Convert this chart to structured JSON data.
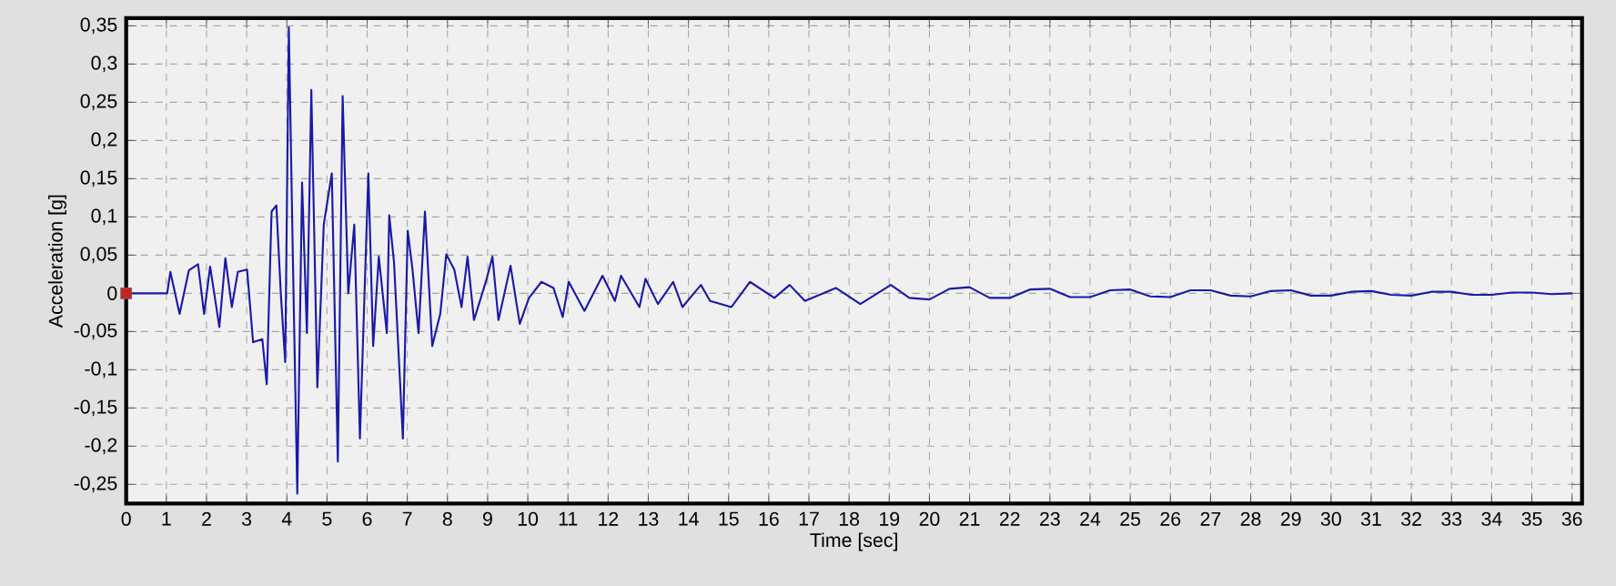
{
  "chart_data": {
    "type": "line",
    "xlabel": "Time [sec]",
    "ylabel": "Acceleration [g]",
    "xlim": [
      0,
      36.25
    ],
    "ylim": [
      -0.275,
      0.36
    ],
    "xticks": [
      0,
      1,
      2,
      3,
      4,
      5,
      6,
      7,
      8,
      9,
      10,
      11,
      12,
      13,
      14,
      15,
      16,
      17,
      18,
      19,
      20,
      21,
      22,
      23,
      24,
      25,
      26,
      27,
      28,
      29,
      30,
      31,
      32,
      33,
      34,
      35,
      36
    ],
    "yticks": [
      {
        "value": -0.25,
        "label": "-0,25"
      },
      {
        "value": -0.2,
        "label": "-0,2"
      },
      {
        "value": -0.15,
        "label": "-0,15"
      },
      {
        "value": -0.1,
        "label": "-0,1"
      },
      {
        "value": -0.05,
        "label": "-0,05"
      },
      {
        "value": 0,
        "label": "0"
      },
      {
        "value": 0.05,
        "label": "0,05"
      },
      {
        "value": 0.1,
        "label": "0,1"
      },
      {
        "value": 0.15,
        "label": "0,15"
      },
      {
        "value": 0.2,
        "label": "0,2"
      },
      {
        "value": 0.25,
        "label": "0,25"
      },
      {
        "value": 0.3,
        "label": "0,3"
      },
      {
        "value": 0.35,
        "label": "0,35"
      }
    ],
    "grid": true,
    "line_style": "solid",
    "marker": "none",
    "series": [
      {
        "color": "#1a1aa6",
        "x": [
          0,
          1.02,
          1.1,
          1.33,
          1.56,
          1.79,
          1.94,
          2.09,
          2.32,
          2.47,
          2.63,
          2.78,
          3.01,
          3.16,
          3.39,
          3.5,
          3.62,
          3.74,
          3.85,
          3.96,
          4.05,
          4.15,
          4.26,
          4.38,
          4.5,
          4.61,
          4.76,
          4.92,
          5.12,
          5.27,
          5.39,
          5.53,
          5.68,
          5.82,
          6.03,
          6.15,
          6.29,
          6.49,
          6.55,
          6.67,
          6.89,
          7.01,
          7.13,
          7.28,
          7.44,
          7.62,
          7.82,
          7.97,
          8.17,
          8.35,
          8.5,
          8.66,
          8.96,
          9.12,
          9.27,
          9.57,
          9.8,
          10.03,
          10.34,
          10.64,
          10.87,
          11.02,
          11.41,
          11.86,
          12.17,
          12.32,
          12.78,
          12.93,
          13.24,
          13.62,
          13.85,
          14.31,
          14.54,
          15.07,
          15.53,
          16.14,
          16.52,
          16.9,
          17.67,
          18.28,
          19.04,
          19.5,
          20,
          20.5,
          21,
          21.5,
          22,
          22.5,
          23,
          23.5,
          24,
          24.5,
          25,
          25.5,
          26,
          26.5,
          27,
          27.5,
          28,
          28.5,
          29,
          29.5,
          30,
          30.5,
          31,
          31.5,
          32,
          32.5,
          33,
          33.5,
          34,
          34.5,
          35,
          35.5,
          36
        ],
        "values": [
          0,
          0,
          0.028,
          -0.027,
          0.03,
          0.038,
          -0.027,
          0.035,
          -0.044,
          0.046,
          -0.018,
          0.028,
          0.031,
          -0.064,
          -0.06,
          -0.119,
          0.107,
          0.115,
          0,
          -0.09,
          0.348,
          0.048,
          -0.262,
          0.145,
          -0.052,
          0.266,
          -0.123,
          0.09,
          0.157,
          -0.22,
          0.258,
          0,
          0.09,
          -0.19,
          0.157,
          -0.069,
          0.048,
          -0.052,
          0.102,
          0.04,
          -0.19,
          0.082,
          0.031,
          -0.052,
          0.107,
          -0.069,
          -0.027,
          0.051,
          0.031,
          -0.018,
          0.048,
          -0.035,
          0.016,
          0.048,
          -0.035,
          0.036,
          -0.04,
          -0.006,
          0.015,
          0.007,
          -0.031,
          0.015,
          -0.023,
          0.023,
          -0.01,
          0.023,
          -0.018,
          0.019,
          -0.014,
          0.015,
          -0.018,
          0.011,
          -0.01,
          -0.018,
          0.015,
          -0.006,
          0.011,
          -0.01,
          0.007,
          -0.014,
          0.011,
          -0.006,
          -0.008,
          0.006,
          0.008,
          -0.006,
          -0.006,
          0.005,
          0.006,
          -0.005,
          -0.005,
          0.004,
          0.005,
          -0.004,
          -0.005,
          0.004,
          0.004,
          -0.003,
          -0.004,
          0.003,
          0.004,
          -0.003,
          -0.003,
          0.002,
          0.003,
          -0.002,
          -0.003,
          0.002,
          0.002,
          -0.002,
          -0.002,
          0.001,
          0.001,
          -0.001,
          0
        ]
      },
      {
        "type": "scatter",
        "marker": "square",
        "color": "#cc2020",
        "x": [
          0
        ],
        "values": [
          0
        ]
      }
    ]
  }
}
